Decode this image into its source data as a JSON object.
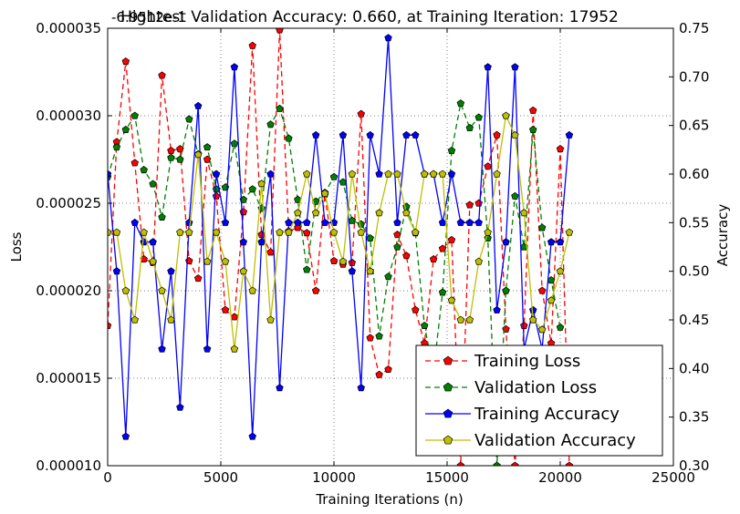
{
  "chart_data": {
    "type": "line",
    "title": "Hightest Validation Accuracy: 0.660, at Training Iteration: 17952",
    "offset_label": "-6.9512e-1",
    "xlabel": "Training Iterations (n)",
    "ylabel_left": "Loss",
    "ylabel_right": "Accuracy",
    "xlim": [
      0,
      25000
    ],
    "ylim_left": [
      1e-05,
      3.5e-05
    ],
    "ylim_right": [
      0.3,
      0.75
    ],
    "x_ticks": [
      "0",
      "5000",
      "10000",
      "15000",
      "20000",
      "25000"
    ],
    "y_left_ticks": [
      "0.000010",
      "0.000015",
      "0.000020",
      "0.000025",
      "0.000030",
      "0.000035"
    ],
    "y_right_ticks": [
      "0.30",
      "0.35",
      "0.40",
      "0.45",
      "0.50",
      "0.55",
      "0.60",
      "0.65",
      "0.70",
      "0.75"
    ],
    "grid": true,
    "legend_position": "lower-right",
    "series": [
      {
        "name": "Training Loss",
        "axis": "left",
        "color": "#ff0000",
        "style": "dashed",
        "points": [
          [
            0,
            1.8e-05
          ],
          [
            400,
            2.85e-05
          ],
          [
            800,
            3.31e-05
          ],
          [
            1200,
            2.73e-05
          ],
          [
            1600,
            2.18e-05
          ],
          [
            2000,
            2.16e-05
          ],
          [
            2400,
            3.23e-05
          ],
          [
            2800,
            2.8e-05
          ],
          [
            3200,
            2.81e-05
          ],
          [
            3600,
            2.17e-05
          ],
          [
            4000,
            2.07e-05
          ],
          [
            4400,
            2.75e-05
          ],
          [
            4800,
            2.54e-05
          ],
          [
            5200,
            1.89e-05
          ],
          [
            5600,
            1.85e-05
          ],
          [
            6000,
            2.45e-05
          ],
          [
            6400,
            3.4e-05
          ],
          [
            6800,
            2.32e-05
          ],
          [
            7200,
            2.22e-05
          ],
          [
            7600,
            3.49e-05
          ],
          [
            8000,
            2.34e-05
          ],
          [
            8400,
            2.36e-05
          ],
          [
            8800,
            2.33e-05
          ],
          [
            9200,
            2e-05
          ],
          [
            9600,
            2.55e-05
          ],
          [
            10000,
            2.17e-05
          ],
          [
            10400,
            2.15e-05
          ],
          [
            10800,
            2.16e-05
          ],
          [
            11200,
            3.01e-05
          ],
          [
            11600,
            1.73e-05
          ],
          [
            12000,
            1.52e-05
          ],
          [
            12400,
            1.55e-05
          ],
          [
            12800,
            2.32e-05
          ],
          [
            13200,
            2.2e-05
          ],
          [
            13600,
            1.89e-05
          ],
          [
            14000,
            1.7e-05
          ],
          [
            14400,
            2.18e-05
          ],
          [
            14800,
            2.24e-05
          ],
          [
            15200,
            2.29e-05
          ],
          [
            15600,
            1e-05
          ],
          [
            16000,
            2.49e-05
          ],
          [
            16400,
            2.5e-05
          ],
          [
            16800,
            2.71e-05
          ],
          [
            17200,
            2.89e-05
          ],
          [
            17600,
            1.78e-05
          ],
          [
            18000,
            1e-05
          ],
          [
            18400,
            1.8e-05
          ],
          [
            18800,
            3.03e-05
          ],
          [
            19200,
            2e-05
          ],
          [
            19600,
            1.7e-05
          ],
          [
            20000,
            2.81e-05
          ],
          [
            20400,
            1e-05
          ]
        ]
      },
      {
        "name": "Validation Loss",
        "axis": "left",
        "color": "#008000",
        "style": "dashed",
        "points": [
          [
            0,
            2.65e-05
          ],
          [
            400,
            2.82e-05
          ],
          [
            800,
            2.92e-05
          ],
          [
            1200,
            3e-05
          ],
          [
            1600,
            2.69e-05
          ],
          [
            2000,
            2.61e-05
          ],
          [
            2400,
            2.42e-05
          ],
          [
            2800,
            2.76e-05
          ],
          [
            3200,
            2.75e-05
          ],
          [
            3600,
            2.98e-05
          ],
          [
            4000,
            2.78e-05
          ],
          [
            4400,
            2.82e-05
          ],
          [
            4800,
            2.58e-05
          ],
          [
            5200,
            2.59e-05
          ],
          [
            5600,
            2.84e-05
          ],
          [
            6000,
            2.52e-05
          ],
          [
            6400,
            2.58e-05
          ],
          [
            6800,
            2.47e-05
          ],
          [
            7200,
            2.95e-05
          ],
          [
            7600,
            3.04e-05
          ],
          [
            8000,
            2.87e-05
          ],
          [
            8400,
            2.52e-05
          ],
          [
            8800,
            2.12e-05
          ],
          [
            9200,
            2.51e-05
          ],
          [
            9600,
            2.56e-05
          ],
          [
            10000,
            2.65e-05
          ],
          [
            10400,
            2.62e-05
          ],
          [
            10800,
            2.4e-05
          ],
          [
            11200,
            2.38e-05
          ],
          [
            11600,
            2.3e-05
          ],
          [
            12000,
            1.74e-05
          ],
          [
            12400,
            2.08e-05
          ],
          [
            12800,
            2.25e-05
          ],
          [
            13200,
            2.48e-05
          ],
          [
            13600,
            2.33e-05
          ],
          [
            14000,
            1.8e-05
          ],
          [
            14400,
            1.54e-05
          ],
          [
            14800,
            1.99e-05
          ],
          [
            15200,
            2.8e-05
          ],
          [
            15600,
            3.07e-05
          ],
          [
            16000,
            2.93e-05
          ],
          [
            16400,
            2.99e-05
          ],
          [
            16800,
            2.3e-05
          ],
          [
            17200,
            1e-05
          ],
          [
            17600,
            2e-05
          ],
          [
            18000,
            2.54e-05
          ],
          [
            18400,
            2.25e-05
          ],
          [
            18800,
            2.92e-05
          ],
          [
            19200,
            2.36e-05
          ],
          [
            19600,
            2.06e-05
          ],
          [
            20000,
            1.79e-05
          ]
        ]
      },
      {
        "name": "Training Accuracy",
        "axis": "right",
        "color": "#0000ff",
        "style": "solid",
        "points": [
          [
            0,
            0.6
          ],
          [
            400,
            0.5
          ],
          [
            800,
            0.33
          ],
          [
            1200,
            0.55
          ],
          [
            1600,
            0.53
          ],
          [
            2000,
            0.53
          ],
          [
            2400,
            0.42
          ],
          [
            2800,
            0.5
          ],
          [
            3200,
            0.36
          ],
          [
            3600,
            0.55
          ],
          [
            4000,
            0.67
          ],
          [
            4400,
            0.42
          ],
          [
            4800,
            0.6
          ],
          [
            5200,
            0.55
          ],
          [
            5600,
            0.71
          ],
          [
            6000,
            0.53
          ],
          [
            6400,
            0.33
          ],
          [
            6800,
            0.53
          ],
          [
            7200,
            0.6
          ],
          [
            7600,
            0.38
          ],
          [
            8000,
            0.55
          ],
          [
            8400,
            0.55
          ],
          [
            8800,
            0.55
          ],
          [
            9200,
            0.64
          ],
          [
            9600,
            0.55
          ],
          [
            10000,
            0.55
          ],
          [
            10400,
            0.64
          ],
          [
            10800,
            0.5
          ],
          [
            11200,
            0.38
          ],
          [
            11600,
            0.64
          ],
          [
            12000,
            0.6
          ],
          [
            12400,
            0.74
          ],
          [
            12800,
            0.55
          ],
          [
            13200,
            0.64
          ],
          [
            13600,
            0.64
          ],
          [
            14000,
            0.6
          ],
          [
            14400,
            0.6
          ],
          [
            14800,
            0.55
          ],
          [
            15200,
            0.6
          ],
          [
            15600,
            0.55
          ],
          [
            16000,
            0.55
          ],
          [
            16400,
            0.55
          ],
          [
            16800,
            0.71
          ],
          [
            17200,
            0.46
          ],
          [
            17600,
            0.53
          ],
          [
            18000,
            0.71
          ],
          [
            18400,
            0.42
          ],
          [
            18800,
            0.46
          ],
          [
            19200,
            0.42
          ],
          [
            19600,
            0.53
          ],
          [
            20000,
            0.53
          ],
          [
            20400,
            0.64
          ]
        ]
      },
      {
        "name": "Validation Accuracy",
        "axis": "right",
        "color": "#bfbf00",
        "style": "solid",
        "points": [
          [
            0,
            0.54
          ],
          [
            400,
            0.54
          ],
          [
            800,
            0.48
          ],
          [
            1200,
            0.45
          ],
          [
            1600,
            0.54
          ],
          [
            2000,
            0.51
          ],
          [
            2400,
            0.48
          ],
          [
            2800,
            0.45
          ],
          [
            3200,
            0.54
          ],
          [
            3600,
            0.54
          ],
          [
            4000,
            0.62
          ],
          [
            4400,
            0.51
          ],
          [
            4800,
            0.54
          ],
          [
            5200,
            0.51
          ],
          [
            5600,
            0.42
          ],
          [
            6000,
            0.5
          ],
          [
            6400,
            0.48
          ],
          [
            6800,
            0.59
          ],
          [
            7200,
            0.45
          ],
          [
            7600,
            0.54
          ],
          [
            8000,
            0.54
          ],
          [
            8400,
            0.56
          ],
          [
            8800,
            0.6
          ],
          [
            9200,
            0.56
          ],
          [
            9600,
            0.58
          ],
          [
            10000,
            0.54
          ],
          [
            10400,
            0.51
          ],
          [
            10800,
            0.6
          ],
          [
            11200,
            0.54
          ],
          [
            11600,
            0.5
          ],
          [
            12000,
            0.56
          ],
          [
            12400,
            0.6
          ],
          [
            12800,
            0.6
          ],
          [
            13200,
            0.56
          ],
          [
            13600,
            0.54
          ],
          [
            14000,
            0.6
          ],
          [
            14400,
            0.6
          ],
          [
            14800,
            0.6
          ],
          [
            15200,
            0.47
          ],
          [
            15600,
            0.45
          ],
          [
            16000,
            0.45
          ],
          [
            16400,
            0.51
          ],
          [
            16800,
            0.54
          ],
          [
            17200,
            0.6
          ],
          [
            17600,
            0.66
          ],
          [
            18000,
            0.64
          ],
          [
            18400,
            0.56
          ],
          [
            18800,
            0.45
          ],
          [
            19200,
            0.44
          ],
          [
            19600,
            0.47
          ],
          [
            20000,
            0.5
          ],
          [
            20400,
            0.54
          ]
        ]
      }
    ]
  }
}
